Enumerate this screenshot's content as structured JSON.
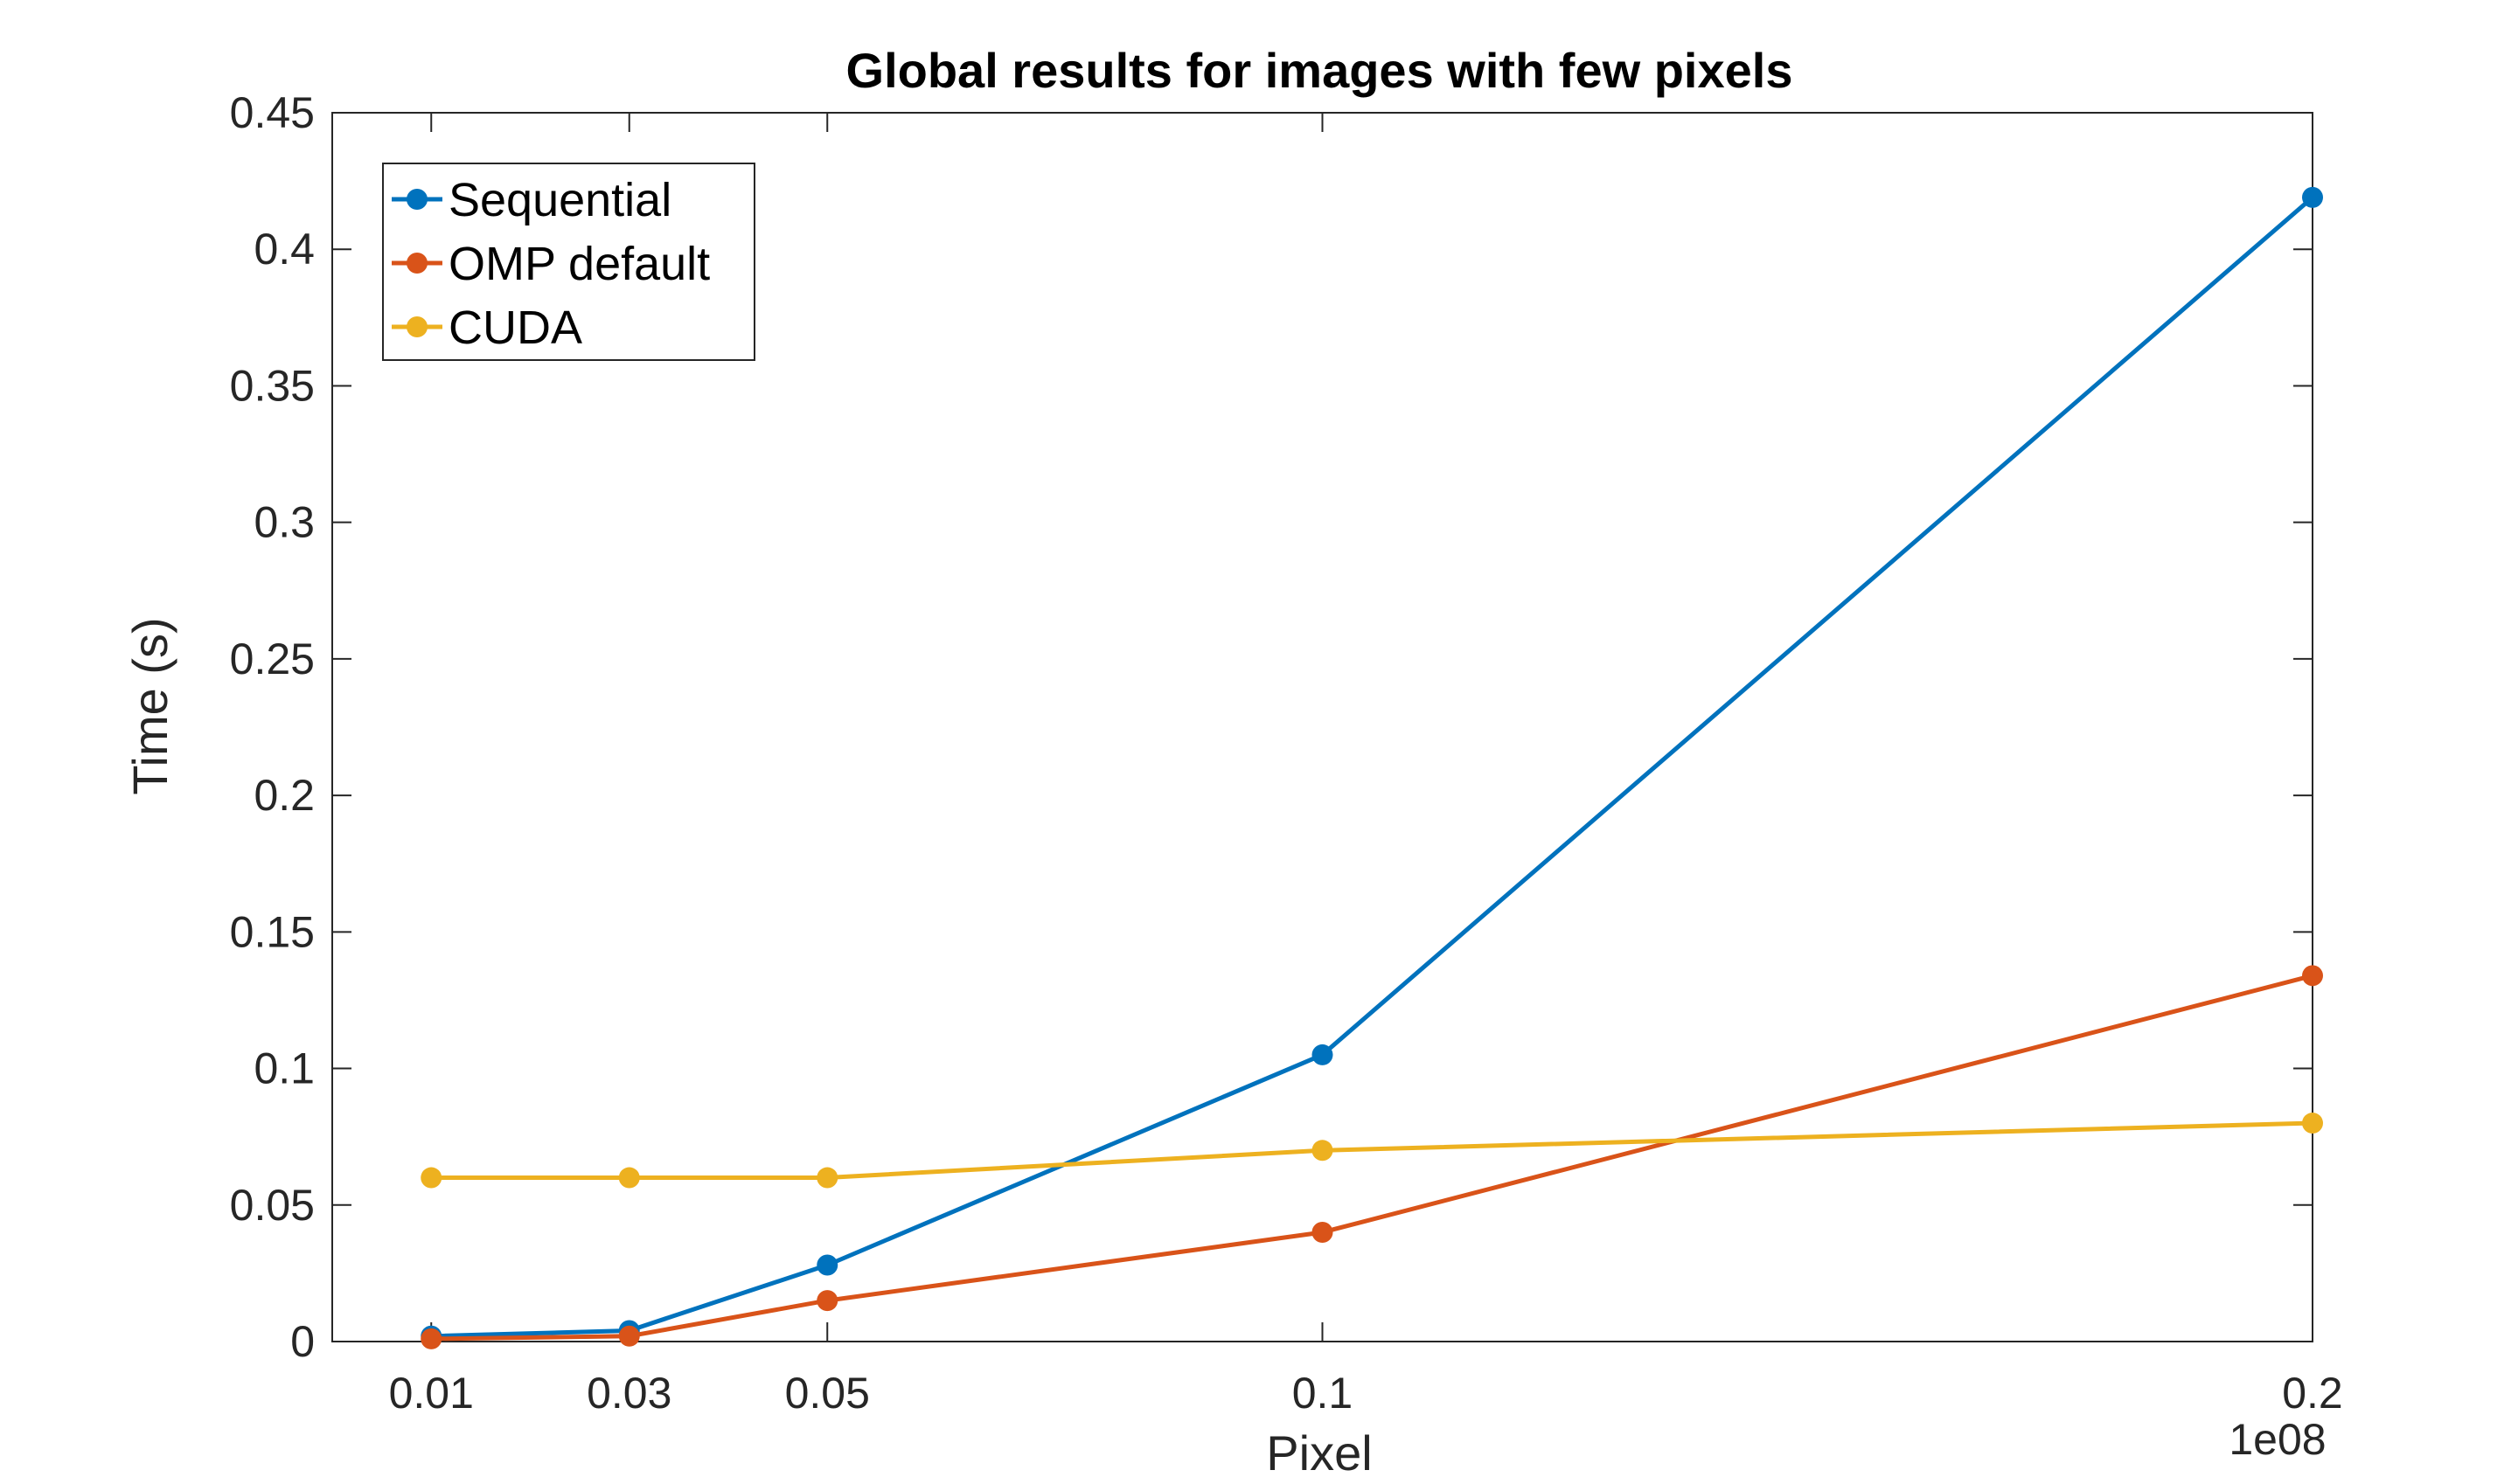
{
  "chart_data": {
    "type": "line",
    "title": "Global results for images with few pixels",
    "xlabel": "Pixel",
    "ylabel": "Time (s)",
    "x_exponent_label": "1e08",
    "x": [
      0.01,
      0.03,
      0.05,
      0.1,
      0.2
    ],
    "x_tick_labels": [
      "0.01",
      "0.03",
      "0.05",
      "0.1",
      "0.2"
    ],
    "xlim": [
      0,
      0.2
    ],
    "ylim": [
      0,
      0.45
    ],
    "y_ticks": [
      0,
      0.05,
      0.1,
      0.15,
      0.2,
      0.25,
      0.3,
      0.35,
      0.4,
      0.45
    ],
    "y_tick_labels": [
      "0",
      "0.05",
      "0.1",
      "0.15",
      "0.2",
      "0.25",
      "0.3",
      "0.35",
      "0.4",
      "0.45"
    ],
    "grid": false,
    "legend_position": "top-left",
    "series": [
      {
        "name": "Sequential",
        "color": "#0072BD",
        "values": [
          0.002,
          0.004,
          0.028,
          0.105,
          0.419
        ]
      },
      {
        "name": "OMP default",
        "color": "#D95319",
        "values": [
          0.001,
          0.002,
          0.015,
          0.04,
          0.134
        ]
      },
      {
        "name": "CUDA",
        "color": "#EDB120",
        "values": [
          0.06,
          0.06,
          0.06,
          0.07,
          0.08
        ]
      }
    ]
  }
}
